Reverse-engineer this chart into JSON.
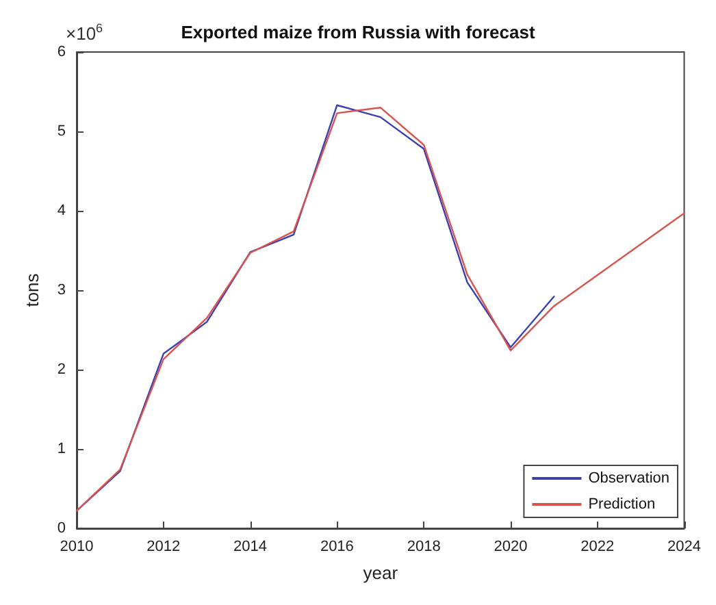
{
  "chart_data": {
    "type": "line",
    "title": "Exported maize from Russia with forecast",
    "xlabel": "year",
    "ylabel": "tons",
    "annotations": [
      "×10$^{6}$"
    ],
    "xlim": [
      2010,
      2024
    ],
    "xticks": [
      2010,
      2012,
      2014,
      2016,
      2018,
      2020,
      2022,
      2024
    ],
    "ylim": [
      0,
      6
    ],
    "yticks": [
      0,
      1,
      2,
      3,
      4,
      5,
      6
    ],
    "grid": false,
    "legend": "bottom right",
    "marker": "none",
    "line_style": "solid",
    "series": [
      {
        "name": "Observation",
        "color": "#3b3fb0",
        "x": [
          2010,
          2011,
          2012,
          2013,
          2014,
          2015,
          2016,
          2017,
          2018,
          2019,
          2020,
          2021
        ],
        "values": [
          0.22,
          0.72,
          2.2,
          2.6,
          3.48,
          3.7,
          5.33,
          5.18,
          4.78,
          3.1,
          2.28,
          2.92
        ]
      },
      {
        "name": "Prediction",
        "color": "#d9534f",
        "x": [
          2010,
          2011,
          2012,
          2013,
          2014,
          2015,
          2016,
          2017,
          2018,
          2019,
          2020,
          2021,
          2024
        ],
        "values": [
          0.22,
          0.74,
          2.13,
          2.65,
          3.47,
          3.74,
          5.23,
          5.3,
          4.83,
          3.2,
          2.24,
          2.8,
          3.97
        ]
      }
    ]
  }
}
